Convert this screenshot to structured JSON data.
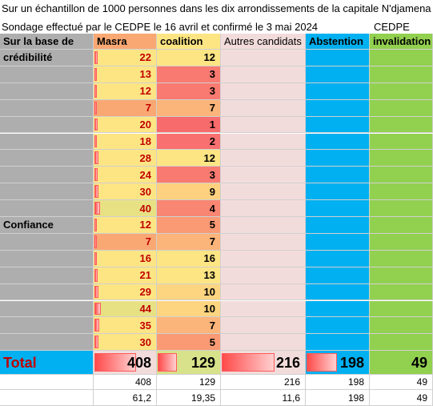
{
  "title_lines": [
    "Sur un échantillon de 1000 personnes dans les dix arrondissements de la capitale N'djamena",
    "Sondage effectué par le CEDPE le 16 avril et confirmé le 3 mai 2024"
  ],
  "cedpe_label": "CEDPE",
  "headers": {
    "col0": "Sur la base de",
    "col1": "Masra",
    "col2": "coalition",
    "col3": "Autres candidats",
    "col4": "Abstention",
    "col5": "invalidation"
  },
  "rows": [
    {
      "label": "crédibilité",
      "masra": 22,
      "coalition": 12,
      "masra_color": "#fde584",
      "coal_color": "#fde584"
    },
    {
      "label": "",
      "masra": 13,
      "coalition": 3,
      "masra_color": "#fde584",
      "coal_color": "#f97a70"
    },
    {
      "label": "",
      "masra": 12,
      "coalition": 3,
      "masra_color": "#fde584",
      "coal_color": "#f97a70"
    },
    {
      "label": "",
      "masra": 7,
      "coalition": 7,
      "masra_color": "#f9a873",
      "coal_color": "#fbb479"
    },
    {
      "label": "",
      "masra": 20,
      "coalition": 1,
      "masra_color": "#fde584",
      "coal_color": "#f86b6c"
    },
    {
      "label": "",
      "masra": 18,
      "coalition": 2,
      "masra_color": "#fde584",
      "coal_color": "#f87070"
    },
    {
      "label": "",
      "masra": 28,
      "coalition": 12,
      "masra_color": "#fde584",
      "coal_color": "#fde584"
    },
    {
      "label": "",
      "masra": 24,
      "coalition": 3,
      "masra_color": "#fde584",
      "coal_color": "#f97a70"
    },
    {
      "label": "",
      "masra": 30,
      "coalition": 9,
      "masra_color": "#fde584",
      "coal_color": "#fdd17f"
    },
    {
      "label": "",
      "masra": 40,
      "coalition": 4,
      "masra_color": "#e8e184",
      "coal_color": "#f98672"
    },
    {
      "label": "Confiance",
      "masra": 12,
      "coalition": 5,
      "masra_color": "#fde584",
      "coal_color": "#f99a74"
    },
    {
      "label": "",
      "masra": 7,
      "coalition": 7,
      "masra_color": "#f9a873",
      "coal_color": "#fbb479"
    },
    {
      "label": "",
      "masra": 16,
      "coalition": 16,
      "masra_color": "#fde584",
      "coal_color": "#fde584"
    },
    {
      "label": "",
      "masra": 21,
      "coalition": 13,
      "masra_color": "#fde584",
      "coal_color": "#fde584"
    },
    {
      "label": "",
      "masra": 29,
      "coalition": 10,
      "masra_color": "#fde584",
      "coal_color": "#fdd580"
    },
    {
      "label": "",
      "masra": 44,
      "coalition": 10,
      "masra_color": "#e8e184",
      "coal_color": "#fdd580"
    },
    {
      "label": "",
      "masra": 35,
      "coalition": 7,
      "masra_color": "#fde584",
      "coal_color": "#fbb479"
    },
    {
      "label": "",
      "masra": 30,
      "coalition": 5,
      "masra_color": "#fde584",
      "coal_color": "#f99a74"
    }
  ],
  "total": {
    "label": "Total",
    "masra": 408,
    "coalition": 129,
    "autres": 216,
    "abstention": 198,
    "invalidation": 49
  },
  "extra_rows": [
    {
      "masra": "408",
      "coalition": "129",
      "autres": "216",
      "abstention": "198",
      "invalidation": "49"
    },
    {
      "masra": "61,2",
      "coalition": "19,35",
      "autres": "11,6",
      "abstention": "198",
      "invalidation": "49"
    }
  ],
  "colors": {
    "label_col": "#aeaeae",
    "autres_col": "#f2dcdb",
    "abstention_col": "#00b0f0",
    "invalidation_col": "#92d050",
    "header_masra": "#f9a873",
    "header_coalition": "#fde584",
    "total_row": "#00b0f0",
    "total_label": "#c00000"
  }
}
